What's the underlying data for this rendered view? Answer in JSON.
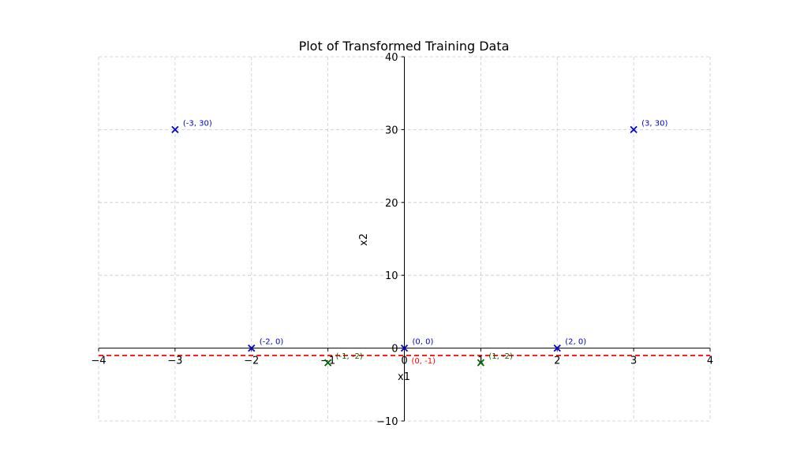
{
  "chart_data": {
    "type": "scatter",
    "title": "Plot of Transformed Training Data",
    "xlabel": "x1",
    "ylabel": "x2",
    "xlim": [
      -4,
      4
    ],
    "ylim": [
      -10,
      40
    ],
    "xticks": [
      -4,
      -3,
      -2,
      -1,
      0,
      1,
      2,
      3,
      4
    ],
    "yticks": [
      -10,
      0,
      10,
      20,
      30,
      40
    ],
    "xtick_labels": [
      "−4",
      "−3",
      "−2",
      "−1",
      "0",
      "1",
      "2",
      "3",
      "4"
    ],
    "ytick_labels": [
      "−10",
      "0",
      "10",
      "20",
      "30",
      "40"
    ],
    "grid": true,
    "spines": "centered",
    "series": [
      {
        "color": "#0000cc",
        "marker": "x",
        "points": [
          {
            "x": -3,
            "y": 30,
            "label": "(-3, 30)"
          },
          {
            "x": -2,
            "y": 0,
            "label": "(-2, 0)"
          },
          {
            "x": 0,
            "y": 0,
            "label": "(0, 0)"
          },
          {
            "x": 2,
            "y": 0,
            "label": "(2, 0)"
          },
          {
            "x": 3,
            "y": 30,
            "label": "(3, 30)"
          }
        ]
      },
      {
        "color": "#006400",
        "marker": "x",
        "points": [
          {
            "x": -1,
            "y": -2,
            "label": "(-1, -2)"
          },
          {
            "x": 1,
            "y": -2,
            "label": "(1, -2)"
          }
        ]
      }
    ],
    "hlines": [
      {
        "y": -1,
        "color": "#ff0000",
        "style": "dashed",
        "label": "(0, -1)"
      }
    ]
  }
}
